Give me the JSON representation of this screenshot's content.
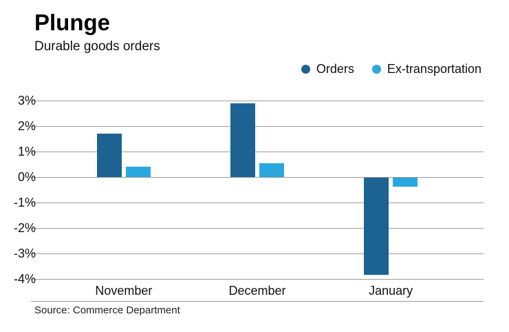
{
  "header": {
    "title": "Plunge",
    "subtitle": "Durable goods orders"
  },
  "source": "Source: Commerce Department",
  "chart_data": {
    "type": "bar",
    "title": "Plunge",
    "subtitle": "Durable goods orders",
    "categories": [
      "November",
      "December",
      "January"
    ],
    "series": [
      {
        "name": "Orders",
        "color": "#1c6394",
        "values": [
          1.7,
          2.9,
          -3.8
        ]
      },
      {
        "name": "Ex-transportation",
        "color": "#2aa7df",
        "values": [
          0.4,
          0.55,
          -0.35
        ]
      }
    ],
    "yticks": [
      3,
      2,
      1,
      0,
      -1,
      -2,
      -3,
      -4
    ],
    "ytick_labels": [
      "3%",
      "2%",
      "1%",
      "0%",
      "-1%",
      "-2%",
      "-3%",
      "-4%"
    ],
    "ylim": [
      -4,
      3
    ],
    "xlabel": "",
    "ylabel": "",
    "grid": true,
    "legend_position": "top-right",
    "source": "Source: Commerce Department"
  }
}
